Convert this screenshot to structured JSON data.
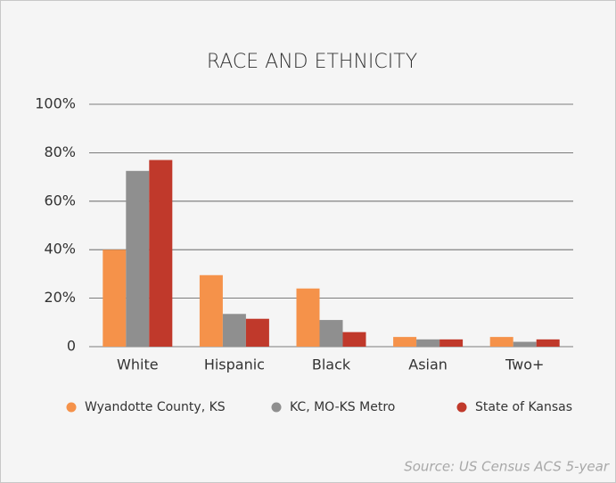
{
  "chart_data": {
    "type": "bar",
    "title": "RACE AND ETHNICITY",
    "categories": [
      "White",
      "Hispanic",
      "Black",
      "Asian",
      "Two+"
    ],
    "series": [
      {
        "name": "Wyandotte County, KS",
        "color": "#f5924a",
        "values": [
          40,
          29.5,
          24,
          4,
          4
        ]
      },
      {
        "name": "KC, MO-KS Metro",
        "color": "#8f8f8f",
        "values": [
          72.5,
          13.5,
          11,
          3,
          2
        ]
      },
      {
        "name": "State of Kansas",
        "color": "#c0392b",
        "values": [
          77,
          11.5,
          6,
          3,
          3
        ]
      }
    ],
    "ylim": [
      0,
      100
    ],
    "yticks": [
      0,
      {
        "value": 20,
        "label": "20%"
      },
      {
        "value": 40,
        "label": "40%"
      },
      {
        "value": 60,
        "label": "60%"
      },
      {
        "value": 80,
        "label": "80%"
      },
      {
        "value": 100,
        "label": "100%"
      }
    ],
    "grid": true,
    "legend": "bottom",
    "source": "Source: US Census ACS 5-year"
  }
}
